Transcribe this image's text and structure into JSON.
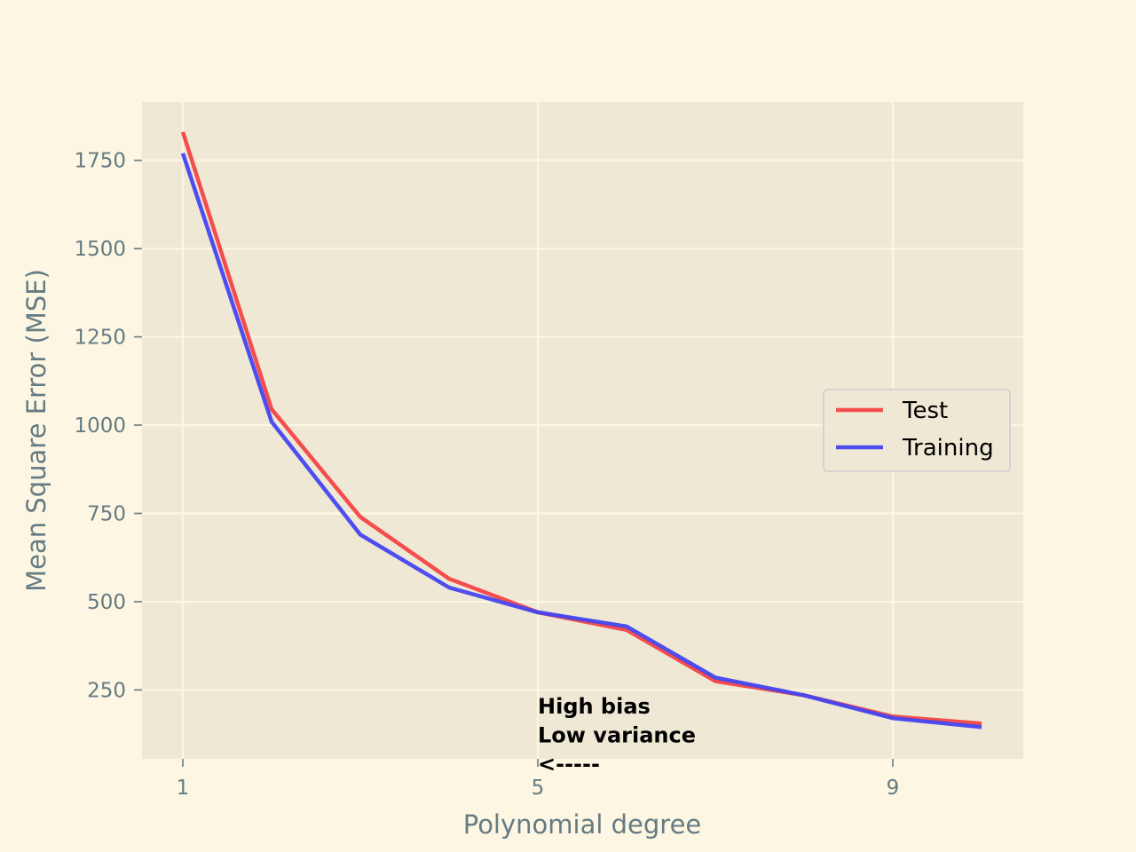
{
  "chart_data": {
    "type": "line",
    "title": "",
    "xlabel": "Polynomial degree",
    "ylabel": "Mean Square Error (MSE)",
    "x": [
      1,
      2,
      3,
      4,
      5,
      6,
      7,
      8,
      9,
      10
    ],
    "xticks": [
      "1",
      "5",
      "9"
    ],
    "xtick_values": [
      1,
      5,
      9
    ],
    "yticks": [
      "250",
      "500",
      "750",
      "1000",
      "1250",
      "1500",
      "1750"
    ],
    "ytick_values": [
      250,
      500,
      750,
      1000,
      1250,
      1500,
      1750
    ],
    "xlim": [
      0.54,
      10.47
    ],
    "ylim": [
      55,
      1915
    ],
    "grid": true,
    "legend_position": "center-right",
    "series": [
      {
        "name": "Test",
        "color": "#f44444",
        "values": [
          1830,
          1045,
          740,
          565,
          470,
          420,
          275,
          235,
          175,
          155
        ]
      },
      {
        "name": "Training",
        "color": "#4444f0",
        "values": [
          1770,
          1010,
          690,
          540,
          470,
          430,
          285,
          235,
          170,
          145
        ]
      }
    ],
    "annotation": {
      "lines": [
        "High bias",
        "Low variance",
        "<-----"
      ],
      "x": 5,
      "y": 125
    }
  }
}
